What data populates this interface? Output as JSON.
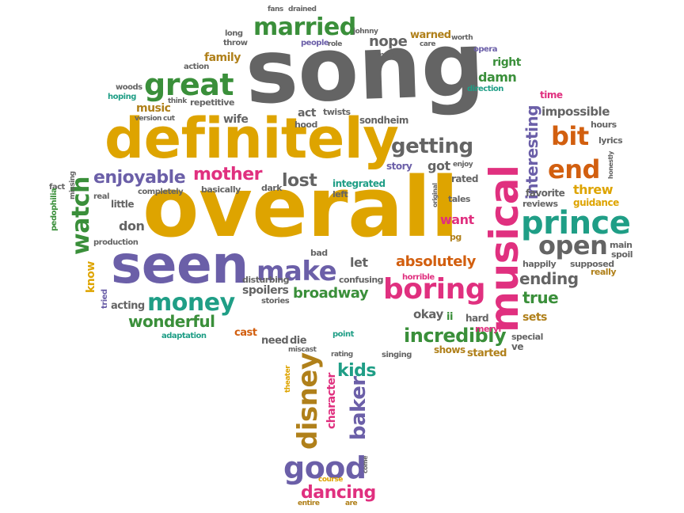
{
  "colors": {
    "gray": "#646464",
    "gold": "#dea400",
    "purple": "#6b5fa8",
    "green": "#3a8f3a",
    "teal": "#1f9e86",
    "magenta": "#e0307f",
    "orange": "#d25f0f",
    "brown": "#b0801a"
  },
  "words": [
    {
      "text": "song",
      "color": "gray"
    },
    {
      "text": "overall",
      "color": "gold"
    },
    {
      "text": "definitely",
      "color": "gold"
    },
    {
      "text": "seen",
      "color": "purple"
    },
    {
      "text": "musical",
      "color": "magenta"
    },
    {
      "text": "prince",
      "color": "teal"
    },
    {
      "text": "great",
      "color": "green"
    },
    {
      "text": "married",
      "color": "green"
    },
    {
      "text": "boring",
      "color": "magenta"
    },
    {
      "text": "make",
      "color": "purple"
    },
    {
      "text": "money",
      "color": "teal"
    },
    {
      "text": "watch",
      "color": "green"
    },
    {
      "text": "disney",
      "color": "brown"
    },
    {
      "text": "good",
      "color": "purple"
    },
    {
      "text": "end",
      "color": "orange"
    },
    {
      "text": "bit",
      "color": "orange"
    },
    {
      "text": "open",
      "color": "gray"
    },
    {
      "text": "getting",
      "color": "gray"
    },
    {
      "text": "incredibly",
      "color": "green"
    },
    {
      "text": "enjoyable",
      "color": "purple"
    },
    {
      "text": "mother",
      "color": "magenta"
    },
    {
      "text": "lost",
      "color": "gray"
    },
    {
      "text": "wonderful",
      "color": "green"
    },
    {
      "text": "baker",
      "color": "purple"
    },
    {
      "text": "kids",
      "color": "teal"
    },
    {
      "text": "dancing",
      "color": "magenta"
    },
    {
      "text": "absolutely",
      "color": "orange"
    },
    {
      "text": "broadway",
      "color": "green"
    },
    {
      "text": "ending",
      "color": "gray"
    },
    {
      "text": "true",
      "color": "green"
    },
    {
      "text": "interesting",
      "color": "purple"
    },
    {
      "text": "threw",
      "color": "gold"
    },
    {
      "text": "impossible",
      "color": "gray"
    },
    {
      "text": "nope",
      "color": "gray"
    },
    {
      "text": "warned",
      "color": "brown"
    },
    {
      "text": "damn",
      "color": "green"
    },
    {
      "text": "right",
      "color": "green"
    },
    {
      "text": "family",
      "color": "brown"
    },
    {
      "text": "music",
      "color": "brown"
    },
    {
      "text": "wife",
      "color": "gray"
    },
    {
      "text": "act",
      "color": "gray"
    },
    {
      "text": "got",
      "color": "gray"
    },
    {
      "text": "want",
      "color": "magenta"
    },
    {
      "text": "let",
      "color": "gray"
    },
    {
      "text": "don",
      "color": "gray"
    },
    {
      "text": "know",
      "color": "gold"
    },
    {
      "text": "sets",
      "color": "brown"
    },
    {
      "text": "character",
      "color": "magenta"
    },
    {
      "text": "okay",
      "color": "gray"
    },
    {
      "text": "ii",
      "color": "green"
    },
    {
      "text": "hard",
      "color": "gray"
    },
    {
      "text": "ve",
      "color": "gray"
    },
    {
      "text": "started",
      "color": "brown"
    },
    {
      "text": "shows",
      "color": "brown"
    },
    {
      "text": "need",
      "color": "gray"
    },
    {
      "text": "die",
      "color": "gray"
    },
    {
      "text": "cast",
      "color": "orange"
    },
    {
      "text": "spoilers",
      "color": "gray"
    },
    {
      "text": "acting",
      "color": "gray"
    },
    {
      "text": "guidance",
      "color": "gold"
    },
    {
      "text": "favorite",
      "color": "gray"
    },
    {
      "text": "rated",
      "color": "gray"
    },
    {
      "text": "story",
      "color": "purple"
    },
    {
      "text": "integrated",
      "color": "teal"
    },
    {
      "text": "sondheim",
      "color": "gray"
    },
    {
      "text": "twists",
      "color": "gray"
    },
    {
      "text": "hood",
      "color": "gray"
    },
    {
      "text": "hours",
      "color": "gray"
    },
    {
      "text": "time",
      "color": "magenta"
    },
    {
      "text": "lyrics",
      "color": "gray"
    },
    {
      "text": "main",
      "color": "gray"
    },
    {
      "text": "spoil",
      "color": "gray"
    },
    {
      "text": "happily",
      "color": "gray"
    },
    {
      "text": "supposed",
      "color": "gray"
    },
    {
      "text": "really",
      "color": "brown"
    },
    {
      "text": "reviews",
      "color": "gray"
    },
    {
      "text": "tales",
      "color": "gray"
    },
    {
      "text": "pg",
      "color": "brown"
    },
    {
      "text": "meryl",
      "color": "magenta"
    },
    {
      "text": "special",
      "color": "gray"
    },
    {
      "text": "bad",
      "color": "gray"
    },
    {
      "text": "confusing",
      "color": "gray"
    },
    {
      "text": "horrible",
      "color": "magenta"
    },
    {
      "text": "disturbing",
      "color": "gray"
    },
    {
      "text": "stories",
      "color": "gray"
    },
    {
      "text": "dark",
      "color": "gray"
    },
    {
      "text": "left",
      "color": "gray"
    },
    {
      "text": "basically",
      "color": "gray"
    },
    {
      "text": "completely",
      "color": "gray"
    },
    {
      "text": "little",
      "color": "gray"
    },
    {
      "text": "real",
      "color": "gray"
    },
    {
      "text": "fact",
      "color": "gray"
    },
    {
      "text": "pedophilia",
      "color": "green"
    },
    {
      "text": "missing",
      "color": "gray"
    },
    {
      "text": "production",
      "color": "gray"
    },
    {
      "text": "tried",
      "color": "purple"
    },
    {
      "text": "adaptation",
      "color": "teal"
    },
    {
      "text": "point",
      "color": "teal"
    },
    {
      "text": "miscast",
      "color": "gray"
    },
    {
      "text": "rating",
      "color": "gray"
    },
    {
      "text": "singing",
      "color": "gray"
    },
    {
      "text": "theater",
      "color": "gold"
    },
    {
      "text": "course",
      "color": "gold"
    },
    {
      "text": "entire",
      "color": "brown"
    },
    {
      "text": "are",
      "color": "brown"
    },
    {
      "text": "come",
      "color": "gray"
    },
    {
      "text": "woods",
      "color": "gray"
    },
    {
      "text": "hoping",
      "color": "teal"
    },
    {
      "text": "action",
      "color": "gray"
    },
    {
      "text": "version",
      "color": "gray"
    },
    {
      "text": "cut",
      "color": "gray"
    },
    {
      "text": "think",
      "color": "gray"
    },
    {
      "text": "repetitive",
      "color": "gray"
    },
    {
      "text": "long",
      "color": "gray"
    },
    {
      "text": "throw",
      "color": "gray"
    },
    {
      "text": "people",
      "color": "purple"
    },
    {
      "text": "role",
      "color": "gray"
    },
    {
      "text": "johnny",
      "color": "gray"
    },
    {
      "text": "fans",
      "color": "gray"
    },
    {
      "text": "drained",
      "color": "gray"
    },
    {
      "text": "care",
      "color": "gray"
    },
    {
      "text": "worth",
      "color": "gray"
    },
    {
      "text": "moral",
      "color": "gray"
    },
    {
      "text": "opera",
      "color": "purple"
    },
    {
      "text": "direction",
      "color": "teal"
    },
    {
      "text": "honestly",
      "color": "gray"
    },
    {
      "text": "enjoy",
      "color": "gray"
    },
    {
      "text": "original",
      "color": "gray"
    }
  ]
}
